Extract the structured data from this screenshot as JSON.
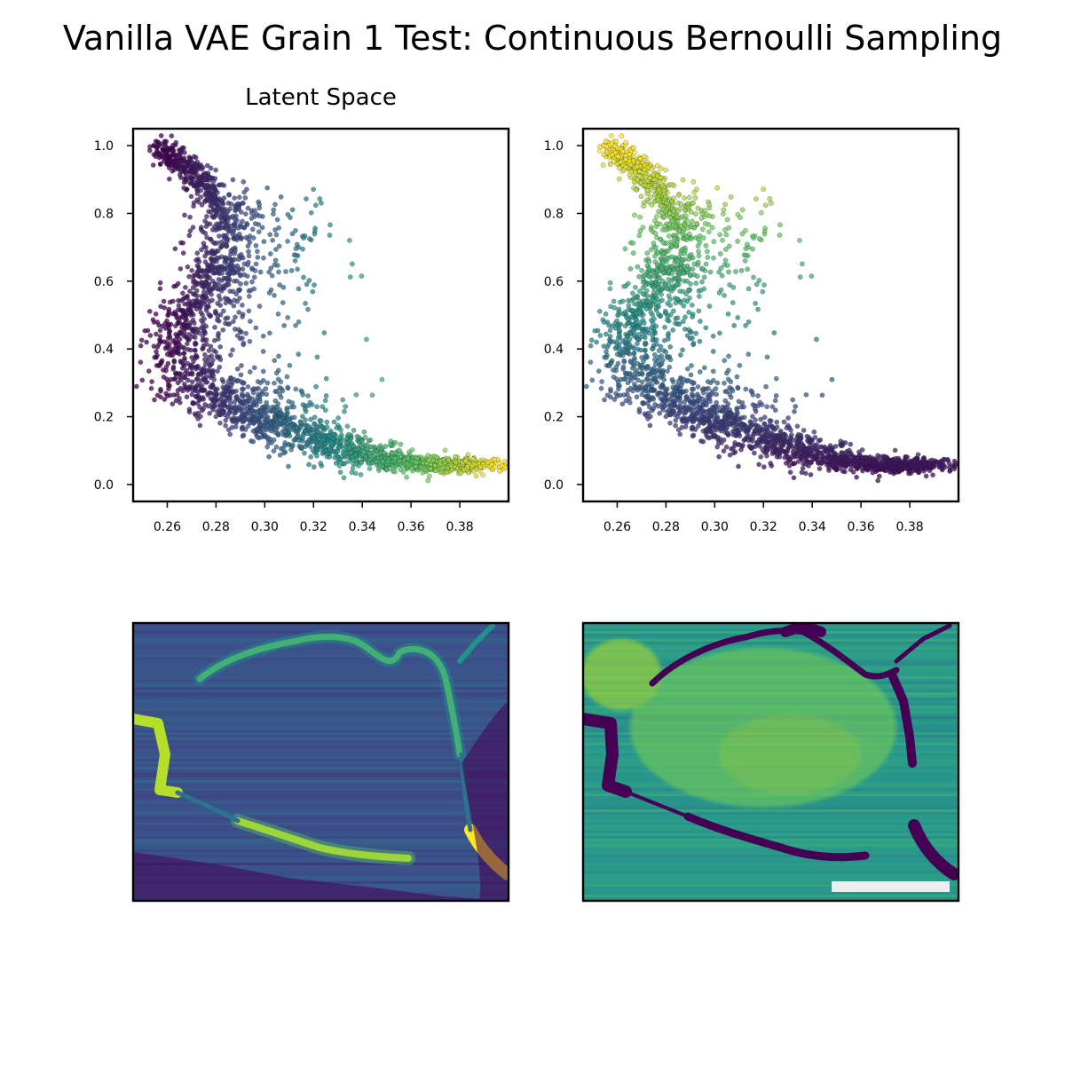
{
  "figure": {
    "title": "Vanilla VAE Grain 1 Test: Continuous Bernoulli Sampling"
  },
  "colormap": {
    "name": "viridis",
    "stops": [
      "#440154",
      "#3b528b",
      "#21918c",
      "#5ec962",
      "#fde725"
    ]
  },
  "scalebar_color": "#eeeeee",
  "chart_data": [
    {
      "type": "scatter",
      "title": "Latent Space",
      "xlim": [
        0.246,
        0.4
      ],
      "ylim": [
        -0.05,
        1.05
      ],
      "xticks": [
        "0.26",
        "0.28",
        "0.30",
        "0.32",
        "0.34",
        "0.36",
        "0.38"
      ],
      "yticks": [
        "0.0",
        "0.2",
        "0.4",
        "0.6",
        "0.8",
        "1.0"
      ],
      "color_encoding": "latent dimension 1 (viridis)",
      "grid": false,
      "legend": "none",
      "backbone": [
        {
          "x": 0.255,
          "y": 1.0
        },
        {
          "x": 0.263,
          "y": 0.96
        },
        {
          "x": 0.274,
          "y": 0.9
        },
        {
          "x": 0.283,
          "y": 0.82
        },
        {
          "x": 0.285,
          "y": 0.72
        },
        {
          "x": 0.28,
          "y": 0.62
        },
        {
          "x": 0.272,
          "y": 0.53
        },
        {
          "x": 0.265,
          "y": 0.45
        },
        {
          "x": 0.262,
          "y": 0.38
        },
        {
          "x": 0.268,
          "y": 0.31
        },
        {
          "x": 0.28,
          "y": 0.26
        },
        {
          "x": 0.295,
          "y": 0.21
        },
        {
          "x": 0.31,
          "y": 0.16
        },
        {
          "x": 0.325,
          "y": 0.12
        },
        {
          "x": 0.34,
          "y": 0.09
        },
        {
          "x": 0.355,
          "y": 0.07
        },
        {
          "x": 0.37,
          "y": 0.055
        },
        {
          "x": 0.382,
          "y": 0.055
        },
        {
          "x": 0.392,
          "y": 0.06
        }
      ]
    },
    {
      "type": "scatter",
      "title": "",
      "xlim": [
        0.246,
        0.4
      ],
      "ylim": [
        -0.05,
        1.05
      ],
      "xticks": [
        "0.26",
        "0.28",
        "0.30",
        "0.32",
        "0.34",
        "0.36",
        "0.38"
      ],
      "yticks": [
        "0.0",
        "0.2",
        "0.4",
        "0.6",
        "0.8",
        "1.0"
      ],
      "color_encoding": "latent dimension 2 (viridis)",
      "grid": false,
      "legend": "none"
    },
    {
      "type": "heatmap",
      "title": "",
      "colormap": "viridis",
      "description_level": "grain interior low, grain boundaries high"
    },
    {
      "type": "heatmap",
      "title": "",
      "colormap": "viridis",
      "description_level": "grain interior high, grain boundaries low",
      "scale_bar": true
    }
  ]
}
